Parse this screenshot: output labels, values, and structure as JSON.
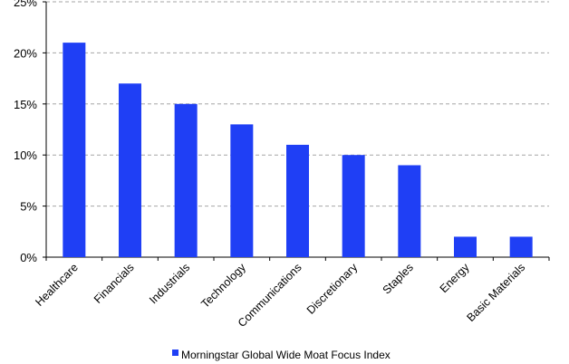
{
  "chart_data": {
    "type": "bar",
    "categories": [
      "Healthcare",
      "Financials",
      "Industrials",
      "Technology",
      "Communications",
      "Discretionary",
      "Staples",
      "Energy",
      "Basic Materials"
    ],
    "series": [
      {
        "name": "Morningstar Global Wide Moat Focus Index",
        "values": [
          21,
          17,
          15,
          13,
          11,
          10,
          9,
          2,
          2
        ],
        "color": "#1f3ff5"
      }
    ],
    "title": "",
    "xlabel": "",
    "ylabel": "",
    "ylim": [
      0,
      25
    ],
    "yticks": [
      0,
      5,
      10,
      15,
      20,
      25
    ],
    "ytick_labels": [
      "0%",
      "5%",
      "10%",
      "15%",
      "20%",
      "25%"
    ],
    "grid": true,
    "legend_position": "bottom"
  }
}
